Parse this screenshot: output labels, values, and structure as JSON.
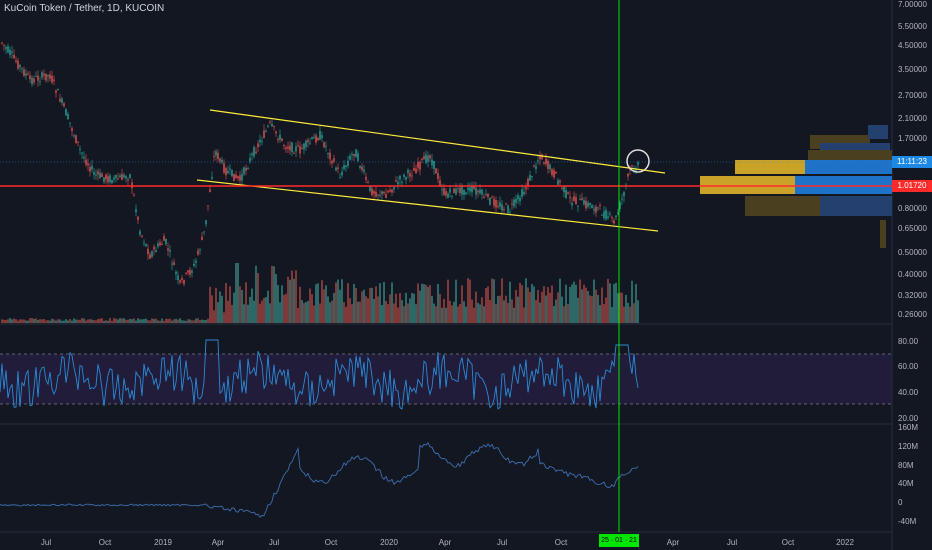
{
  "header": {
    "title": "KuCoin Token / Tether, 1D, KUCOIN"
  },
  "price_axis": {
    "labels": [
      "7.00000",
      "5.50000",
      "4.50000",
      "3.50000",
      "2.70000",
      "2.10000",
      "1.70000",
      "0.80000",
      "0.65000",
      "0.50000",
      "0.40000",
      "0.32000",
      "0.26000"
    ],
    "badges": {
      "time_value": "11:11:23",
      "current_value": "1.01720"
    }
  },
  "rsi_axis": {
    "labels": [
      "80.00",
      "60.00",
      "40.00",
      "20.00"
    ]
  },
  "obv_axis": {
    "labels": [
      "160M",
      "120M",
      "80M",
      "40M",
      "0",
      "-40M"
    ]
  },
  "time_axis": {
    "labels": [
      "Jul",
      "Oct",
      "2019",
      "Apr",
      "Jul",
      "Oct",
      "2020",
      "Apr",
      "Jul",
      "Oct",
      "Apr",
      "Jul",
      "Oct",
      "2022"
    ],
    "cursor_label": "25 · 01 · 21"
  },
  "colors": {
    "background": "#131722",
    "bull": "#26a69a",
    "bear": "#ef5350",
    "channel": "#ffeb3b",
    "support": "#ff2a2a",
    "cursor": "#00e600",
    "rsi_line": "#2b8ad6",
    "rsi_band": "#2a1f4a",
    "obv_line": "#3d6fb0"
  }
}
